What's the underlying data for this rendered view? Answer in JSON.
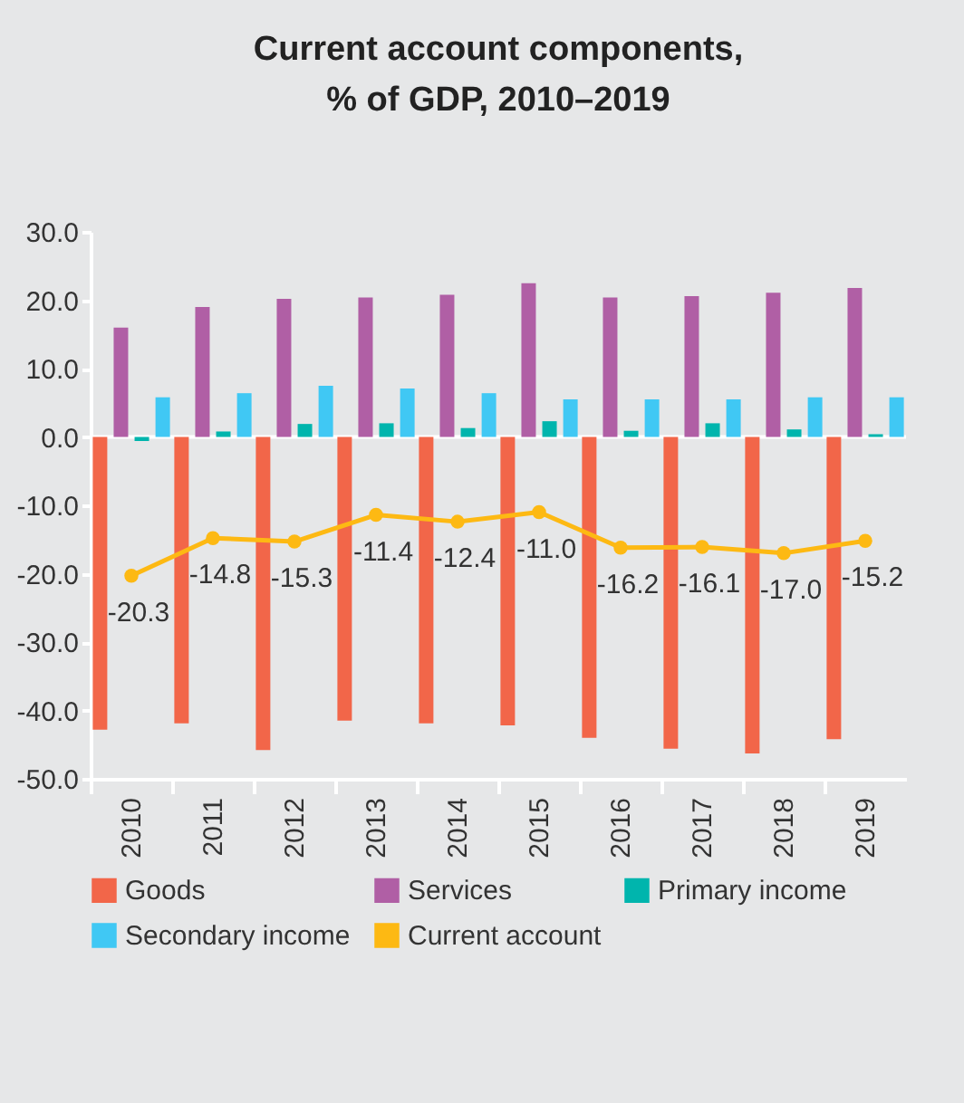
{
  "chart_data": {
    "type": "bar",
    "title": [
      "Current account components,",
      "% of GDP, 2010–2019"
    ],
    "categories": [
      "2010",
      "2011",
      "2012",
      "2013",
      "2014",
      "2015",
      "2016",
      "2017",
      "2018",
      "2019"
    ],
    "series": [
      {
        "name": "Goods",
        "color": "#f26649",
        "values": [
          -42.8,
          -41.9,
          -45.8,
          -41.5,
          -41.9,
          -42.2,
          -44.0,
          -45.6,
          -46.3,
          -44.2
        ]
      },
      {
        "name": "Services",
        "color": "#b05fa5",
        "values": [
          16.0,
          19.0,
          20.2,
          20.4,
          20.8,
          22.5,
          20.4,
          20.6,
          21.1,
          21.8
        ]
      },
      {
        "name": "Primary income",
        "color": "#00b5ad",
        "values": [
          -0.6,
          0.8,
          1.9,
          2.0,
          1.3,
          2.3,
          0.9,
          2.0,
          1.1,
          0.4
        ]
      },
      {
        "name": "Secondary income",
        "color": "#40c8f4",
        "values": [
          5.8,
          6.4,
          7.5,
          7.1,
          6.4,
          5.5,
          5.5,
          5.5,
          5.8,
          5.8
        ]
      },
      {
        "name": "Current account",
        "type": "line",
        "color": "#fdb913",
        "values": [
          -20.3,
          -14.8,
          -15.3,
          -11.4,
          -12.4,
          -11.0,
          -16.2,
          -16.1,
          -17.0,
          -15.2
        ],
        "value_labels": [
          "-20.3",
          "-14.8",
          "-15.3",
          "-11.4",
          "-12.4",
          "-11.0",
          "-16.2",
          "-16.1",
          "-17.0",
          "-15.2"
        ]
      }
    ],
    "ylim": [
      -50,
      30
    ],
    "yticks": [
      {
        "value": 30,
        "label": "30.0"
      },
      {
        "value": 20,
        "label": "20.0"
      },
      {
        "value": 10,
        "label": "10.0"
      },
      {
        "value": 0,
        "label": "0.0"
      },
      {
        "value": -10,
        "label": "-10.0"
      },
      {
        "value": -20,
        "label": "-20.0"
      },
      {
        "value": -30,
        "label": "-30.0"
      },
      {
        "value": -40,
        "label": "-40.0"
      },
      {
        "value": -50,
        "label": "-50.0"
      }
    ],
    "ref_lines": [
      {
        "axis": "y",
        "value": 0,
        "color": "#ffffff"
      }
    ],
    "grid": false,
    "legend": "bottom",
    "marker": "circle",
    "line_style": "solid"
  }
}
